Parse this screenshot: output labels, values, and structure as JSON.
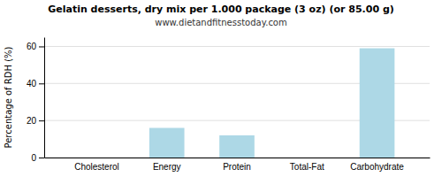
{
  "chart_data": {
    "type": "bar",
    "title": "Gelatin desserts, dry mix per 1.000 package (3 oz) (or 85.00 g)",
    "subtitle": "www.dietandfitnesstoday.com",
    "categories": [
      "Cholesterol",
      "Energy",
      "Protein",
      "Total-Fat",
      "Carbohydrate"
    ],
    "values": [
      0,
      16,
      12,
      0,
      59
    ],
    "color": "#add8e6",
    "ylabel": "Percentage of RDH (%)",
    "ylim": [
      0,
      65
    ],
    "yticks": [
      0,
      20,
      40,
      60
    ],
    "grid": true
  }
}
